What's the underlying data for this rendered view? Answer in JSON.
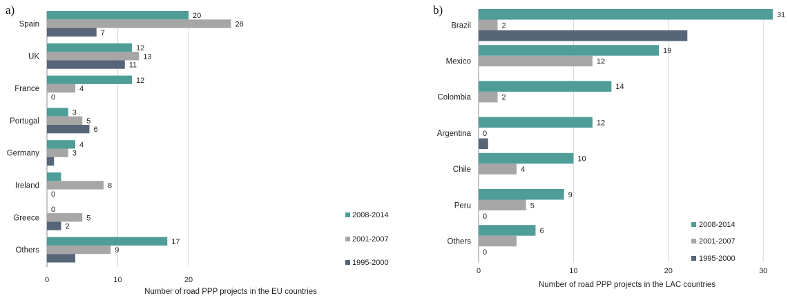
{
  "colors": {
    "2008-2014": "#4f9d98",
    "2001-2007": "#a6a6a6",
    "1995-2000": "#566678"
  },
  "chart_data": [
    {
      "type": "bar",
      "orientation": "horizontal",
      "panel_label": "a)",
      "xlabel": "Number of road PPP projects in the EU countries",
      "xlim": [
        0,
        26
      ],
      "xticks": [
        0,
        10,
        20
      ],
      "grid": true,
      "legend_position": "bottom-right",
      "categories": [
        "Spain",
        "UK",
        "France",
        "Portugal",
        "Germany",
        "Ireland",
        "Greece",
        "Others"
      ],
      "series": [
        {
          "name": "2008-2014",
          "values": [
            20,
            12,
            12,
            3,
            4,
            2,
            0,
            17
          ],
          "labels": [
            "20",
            "12",
            "12",
            "3",
            "4",
            "",
            "0",
            "17"
          ]
        },
        {
          "name": "2001-2007",
          "values": [
            26,
            13,
            4,
            5,
            3,
            8,
            5,
            9
          ],
          "labels": [
            "26",
            "13",
            "4",
            "5",
            "3",
            "8",
            "5",
            "9"
          ]
        },
        {
          "name": "1995-2000",
          "values": [
            7,
            11,
            0,
            6,
            1,
            0,
            2,
            4
          ],
          "labels": [
            "7",
            "11",
            "0",
            "6",
            "",
            "0",
            "2",
            ""
          ]
        }
      ]
    },
    {
      "type": "bar",
      "orientation": "horizontal",
      "panel_label": "b)",
      "xlabel": "Number of road PPP projects in the LAC countries",
      "xlim": [
        0,
        31
      ],
      "xticks": [
        0,
        10,
        20,
        30
      ],
      "grid": true,
      "legend_position": "bottom-right",
      "categories": [
        "Brazil",
        "Mexico",
        "Colombia",
        "Argentina",
        "Chile",
        "Peru",
        "Others"
      ],
      "series": [
        {
          "name": "2008-2014",
          "values": [
            31,
            19,
            14,
            12,
            10,
            9,
            6
          ],
          "labels": [
            "31",
            "19",
            "14",
            "12",
            "10",
            "9",
            "6"
          ]
        },
        {
          "name": "2001-2007",
          "values": [
            2,
            12,
            2,
            0,
            4,
            5,
            4
          ],
          "labels": [
            "2",
            "12",
            "2",
            "0",
            "4",
            "5",
            ""
          ]
        },
        {
          "name": "1995-2000",
          "values": [
            22,
            0,
            0,
            1,
            0,
            0,
            0
          ],
          "labels": [
            "",
            "",
            "",
            "",
            "",
            "0",
            "0"
          ]
        }
      ]
    }
  ]
}
